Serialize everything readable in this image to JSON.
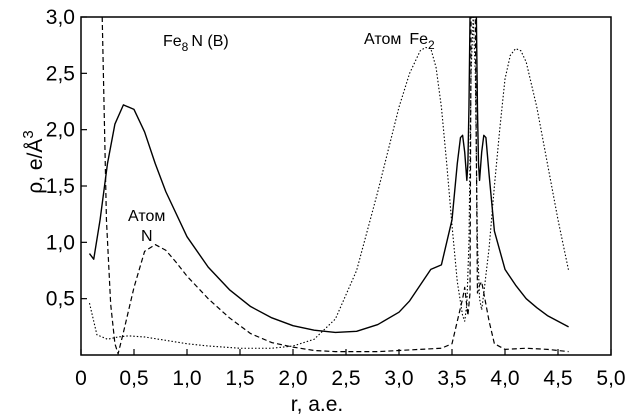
{
  "chart_data": {
    "type": "line",
    "xlabel": "r, a.e.",
    "ylabel": "ρ, e/Å",
    "ylabel_sup": "3",
    "xlim": [
      0,
      5.0
    ],
    "ylim": [
      0,
      3.0
    ],
    "xticks": [
      "0",
      "0,5",
      "1,0",
      "1,5",
      "2,0",
      "2,5",
      "3,0",
      "3,5",
      "4,0",
      "4,5",
      "5,0"
    ],
    "yticks": [
      "0,5",
      "1,0",
      "1,5",
      "2,0",
      "2,5",
      "3,0"
    ],
    "grid": false,
    "legend": "none",
    "annotations": {
      "compound_main": "Fe",
      "compound_sub": "8",
      "compound_rest": "N (B)",
      "atom_fe_word": "Атом",
      "atom_fe_main": "Fe",
      "atom_fe_sub": "2",
      "atom_n_word": "Атом",
      "atom_n_label": "N"
    },
    "series": [
      {
        "style": "solid",
        "x": [
          0.08,
          0.12,
          0.18,
          0.25,
          0.32,
          0.4,
          0.5,
          0.6,
          0.7,
          0.8,
          1.0,
          1.2,
          1.4,
          1.6,
          1.8,
          2.0,
          2.2,
          2.4,
          2.6,
          2.8,
          3.0,
          3.1,
          3.2,
          3.3,
          3.4,
          3.5,
          3.55,
          3.58,
          3.6,
          3.62,
          3.64,
          3.65,
          3.66,
          3.67,
          3.68,
          3.69,
          3.7,
          3.71,
          3.72,
          3.73,
          3.74,
          3.75,
          3.76,
          3.78,
          3.8,
          3.82,
          3.85,
          3.9,
          4.0,
          4.1,
          4.2,
          4.3,
          4.4,
          4.5,
          4.6
        ],
        "y": [
          0.9,
          0.85,
          1.2,
          1.7,
          2.05,
          2.22,
          2.18,
          1.98,
          1.7,
          1.45,
          1.05,
          0.78,
          0.58,
          0.43,
          0.33,
          0.26,
          0.22,
          0.2,
          0.21,
          0.27,
          0.38,
          0.48,
          0.62,
          0.76,
          0.8,
          1.2,
          1.7,
          1.93,
          1.95,
          1.8,
          1.55,
          1.7,
          2.2,
          3.0,
          3.0,
          3.0,
          3.0,
          3.0,
          3.0,
          3.0,
          2.2,
          1.7,
          1.55,
          1.8,
          1.95,
          1.93,
          1.6,
          1.1,
          0.76,
          0.62,
          0.5,
          0.42,
          0.35,
          0.3,
          0.25
        ]
      },
      {
        "style": "dashed",
        "x": [
          0.2,
          0.24,
          0.28,
          0.32,
          0.35,
          0.4,
          0.5,
          0.6,
          0.7,
          0.8,
          0.9,
          1.0,
          1.2,
          1.4,
          1.6,
          1.8,
          2.0,
          2.2,
          2.4,
          2.6,
          2.8,
          3.0,
          3.2,
          3.4,
          3.5,
          3.6,
          3.62,
          3.65,
          3.67,
          3.68,
          3.7,
          3.72,
          3.74,
          3.76,
          3.78,
          3.8,
          3.85,
          3.9,
          4.0,
          4.2,
          4.4,
          4.6
        ],
        "y": [
          3.0,
          1.2,
          0.45,
          0.1,
          0.01,
          0.2,
          0.6,
          0.92,
          0.98,
          0.93,
          0.82,
          0.7,
          0.5,
          0.33,
          0.19,
          0.11,
          0.07,
          0.04,
          0.03,
          0.03,
          0.03,
          0.04,
          0.05,
          0.06,
          0.1,
          0.5,
          0.6,
          0.35,
          0.55,
          3.0,
          3.0,
          3.0,
          0.55,
          0.62,
          0.65,
          0.55,
          0.3,
          0.1,
          0.05,
          0.06,
          0.05,
          0.03
        ]
      },
      {
        "style": "dotted",
        "x": [
          0.08,
          0.15,
          0.25,
          0.35,
          0.45,
          0.6,
          0.8,
          1.0,
          1.2,
          1.5,
          1.8,
          2.0,
          2.2,
          2.4,
          2.6,
          2.8,
          3.0,
          3.1,
          3.2,
          3.25,
          3.3,
          3.35,
          3.4,
          3.45,
          3.5,
          3.55,
          3.6,
          3.62,
          3.64,
          3.66,
          3.68,
          3.7,
          3.72,
          3.74,
          3.76,
          3.78,
          3.8,
          3.85,
          3.9,
          3.95,
          4.0,
          4.05,
          4.1,
          4.15,
          4.2,
          4.3,
          4.4,
          4.5,
          4.6
        ],
        "y": [
          0.46,
          0.18,
          0.14,
          0.16,
          0.17,
          0.16,
          0.13,
          0.1,
          0.08,
          0.06,
          0.06,
          0.08,
          0.14,
          0.32,
          0.75,
          1.45,
          2.2,
          2.5,
          2.7,
          2.73,
          2.72,
          2.55,
          2.2,
          1.7,
          1.15,
          0.65,
          0.35,
          0.3,
          0.45,
          1.0,
          2.5,
          3.0,
          2.5,
          1.0,
          0.5,
          0.4,
          0.55,
          0.95,
          1.5,
          2.0,
          2.45,
          2.66,
          2.72,
          2.7,
          2.6,
          2.2,
          1.7,
          1.2,
          0.75
        ]
      }
    ]
  }
}
